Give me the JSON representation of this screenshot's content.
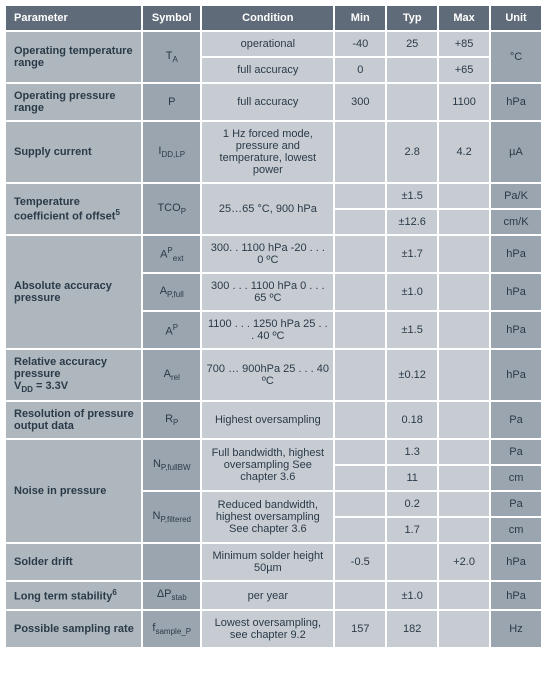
{
  "headers": {
    "parameter": "Parameter",
    "symbol": "Symbol",
    "condition": "Condition",
    "min": "Min",
    "typ": "Typ",
    "max": "Max",
    "unit": "Unit"
  },
  "rows": {
    "r1": {
      "param": "Operating temperature range",
      "symbol": "T",
      "sub": "A",
      "cond": "operational",
      "min": "-40",
      "typ": "25",
      "max": "+85",
      "unit": "°C"
    },
    "r1b": {
      "cond": "full accuracy",
      "min": "0",
      "max": "+65"
    },
    "r2": {
      "param": "Operating pressure range",
      "symbol": "P",
      "cond": "full accuracy",
      "min": "300",
      "max": "1100",
      "unit": "hPa"
    },
    "r3": {
      "param": "Supply current",
      "symbol": "I",
      "sub": "DD,LP",
      "cond": "1 Hz forced mode, pressure and temperature, lowest power",
      "typ": "2.8",
      "max": "4.2",
      "unit": "µA"
    },
    "r4": {
      "param": "Temperature coefficient of offset",
      "paramSup": "5",
      "symbol": "TCO",
      "sub": "P",
      "cond": "25…65 °C, 900 hPa",
      "typ": "±1.5",
      "unit": "Pa/K"
    },
    "r4b": {
      "typ": "±12.6",
      "unit": "cm/K"
    },
    "r5": {
      "param": "Absolute accuracy pressure",
      "symbol": "A",
      "sup": "P",
      "sub": "ext",
      "cond": "300. . 1100 hPa -20 . . . 0 ºC",
      "typ": "±1.7",
      "unit": "hPa"
    },
    "r5b": {
      "symbol": "A",
      "sub": "P,full",
      "cond": "300 . . . 1100 hPa 0 . . . 65 ºC",
      "typ": "±1.0",
      "unit": "hPa"
    },
    "r5c": {
      "symbol": "A",
      "sup": "P",
      "cond": "1100 . . . 1250 hPa 25 . . . 40 ºC",
      "typ": "±1.5",
      "unit": "hPa"
    },
    "r6": {
      "param": " Relative accuracy pressure",
      "param2": "V",
      "param2sub": "DD",
      "param2rest": " = 3.3V",
      "symbol": "A",
      "sub": "rel",
      "cond": "700 … 900hPa 25 . . . 40 ºC",
      "typ": "±0.12",
      "unit": "hPa"
    },
    "r7": {
      "param": "Resolution of pressure output data",
      "symbol": "R",
      "sub": "P",
      "cond": "Highest oversampling",
      "typ": "0.18",
      "unit": "Pa"
    },
    "r8": {
      "param": "Noise in pressure",
      "symbol": "N",
      "sub": "P,fullBW",
      "cond": "Full bandwidth, highest oversampling See chapter 3.6",
      "typ": "1.3",
      "unit": "Pa"
    },
    "r8b": {
      "typ": "11",
      "unit": "cm"
    },
    "r8c": {
      "symbol": "N",
      "sub": "P,filtered",
      "cond": "Reduced bandwidth, highest oversampling See chapter 3.6",
      "typ": "0.2",
      "unit": "Pa"
    },
    "r8d": {
      "typ": "1.7",
      "unit": "cm"
    },
    "r9": {
      "param": "Solder drift",
      "cond": "Minimum solder height 50µm",
      "min": "-0.5",
      "max": "+2.0",
      "unit": "hPa"
    },
    "r10": {
      "param": "Long term stability",
      "paramSup": "6",
      "symbol": "ΔP",
      "sub": "stab",
      "cond": "per year",
      "typ": "±1.0",
      "unit": "hPa"
    },
    "r11": {
      "param": "Possible sampling rate",
      "symbol": "f",
      "sub": "sample_P",
      "cond": "Lowest oversampling, see chapter 9.2",
      "min": "157",
      "typ": "182",
      "unit": "Hz"
    }
  }
}
